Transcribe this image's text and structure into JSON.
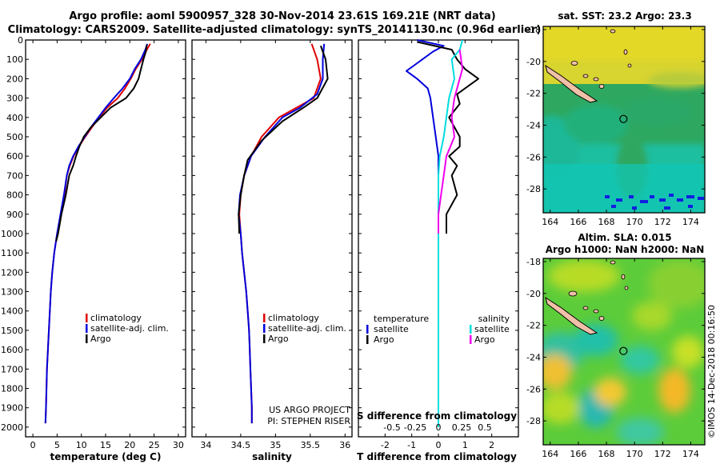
{
  "title": {
    "line1": "Argo profile: aoml 5900957_328 30-Nov-2014 23.61S 169.21E (NRT data)",
    "line2": "Climatology: CARS2009. Satellite-adjusted climatology: synTS_20141130.nc (0.96d earlier)"
  },
  "colors": {
    "climatology": "#e00000",
    "satellite": "#0000dd",
    "argo": "#000000",
    "sat_salinity": "#00dddd",
    "argo_salinity_diff": "#ee00ee"
  },
  "chart_data": [
    {
      "type": "line",
      "name": "temperature-profile",
      "xlabel": "temperature (deg C)",
      "xlim": [
        -1.5,
        31.5
      ],
      "ylim": [
        2050,
        0
      ],
      "xticks": [
        0,
        5,
        10,
        15,
        20,
        25,
        30
      ],
      "yticks": [
        0,
        100,
        200,
        300,
        400,
        500,
        600,
        700,
        800,
        900,
        1000,
        1100,
        1200,
        1300,
        1400,
        1500,
        1600,
        1700,
        1800,
        1900,
        2000
      ],
      "legend": [
        "climatology",
        "satellite-adj. clim.",
        "Argo"
      ],
      "series": [
        {
          "name": "climatology",
          "color_key": "climatology",
          "points": [
            [
              24.2,
              20
            ],
            [
              23.5,
              50
            ],
            [
              22.5,
              100
            ],
            [
              21.2,
              150
            ],
            [
              20.2,
              200
            ],
            [
              19,
              250
            ],
            [
              17.5,
              300
            ],
            [
              15.3,
              350
            ],
            [
              13.7,
              400
            ],
            [
              12.2,
              450
            ],
            [
              10.8,
              500
            ],
            [
              9.5,
              550
            ],
            [
              8.4,
              600
            ],
            [
              7.6,
              650
            ],
            [
              7.0,
              700
            ],
            [
              6.5,
              800
            ],
            [
              5.8,
              900
            ],
            [
              5.0,
              1000
            ],
            [
              4.4,
              1100
            ],
            [
              4.0,
              1200
            ],
            [
              3.7,
              1300
            ],
            [
              3.5,
              1400
            ],
            [
              3.3,
              1500
            ],
            [
              3.1,
              1600
            ],
            [
              2.9,
              1700
            ],
            [
              2.8,
              1800
            ],
            [
              2.7,
              1900
            ],
            [
              2.6,
              1980
            ]
          ]
        },
        {
          "name": "satellite-adj. clim.",
          "color_key": "satellite",
          "points": [
            [
              23.6,
              20
            ],
            [
              23.2,
              50
            ],
            [
              22.3,
              100
            ],
            [
              21.0,
              150
            ],
            [
              20.0,
              200
            ],
            [
              18.5,
              250
            ],
            [
              16.7,
              300
            ],
            [
              15.0,
              350
            ],
            [
              13.5,
              400
            ],
            [
              12.0,
              450
            ],
            [
              10.7,
              500
            ],
            [
              9.4,
              550
            ],
            [
              8.3,
              600
            ],
            [
              7.5,
              650
            ],
            [
              7.0,
              700
            ],
            [
              6.4,
              800
            ],
            [
              5.7,
              900
            ],
            [
              5.0,
              1000
            ],
            [
              4.4,
              1100
            ],
            [
              4.0,
              1200
            ],
            [
              3.7,
              1300
            ],
            [
              3.5,
              1400
            ],
            [
              3.3,
              1500
            ],
            [
              3.1,
              1600
            ],
            [
              2.9,
              1700
            ],
            [
              2.8,
              1800
            ],
            [
              2.7,
              1900
            ],
            [
              2.6,
              1980
            ]
          ]
        },
        {
          "name": "Argo",
          "color_key": "argo",
          "points": [
            [
              23.5,
              25
            ],
            [
              23.3,
              60
            ],
            [
              22.8,
              100
            ],
            [
              22.3,
              150
            ],
            [
              21.8,
              200
            ],
            [
              20.8,
              250
            ],
            [
              19.2,
              300
            ],
            [
              16.0,
              350
            ],
            [
              14.0,
              400
            ],
            [
              12.0,
              450
            ],
            [
              10.5,
              500
            ],
            [
              9.6,
              550
            ],
            [
              8.9,
              600
            ],
            [
              8.3,
              650
            ],
            [
              7.5,
              700
            ],
            [
              6.8,
              800
            ],
            [
              5.9,
              900
            ],
            [
              5.2,
              1000
            ],
            [
              4.8,
              1040
            ]
          ]
        }
      ]
    },
    {
      "type": "line",
      "name": "salinity-profile",
      "xlabel": "salinity",
      "xlim": [
        33.8,
        36.1
      ],
      "ylim": [
        2050,
        0
      ],
      "xticks": [
        34,
        34.5,
        35,
        35.5,
        36
      ],
      "legend": [
        "climatology",
        "satellite-adj. clim.",
        "Argo"
      ],
      "annotation": [
        "US ARGO PROJECT",
        "PI: STEPHEN RISER"
      ],
      "series": [
        {
          "name": "climatology",
          "color_key": "climatology",
          "points": [
            [
              35.52,
              20
            ],
            [
              35.6,
              100
            ],
            [
              35.65,
              200
            ],
            [
              35.55,
              300
            ],
            [
              35.3,
              350
            ],
            [
              35.05,
              400
            ],
            [
              34.8,
              500
            ],
            [
              34.65,
              600
            ],
            [
              34.55,
              700
            ],
            [
              34.5,
              800
            ],
            [
              34.48,
              900
            ],
            [
              34.5,
              1000
            ],
            [
              34.52,
              1100
            ],
            [
              34.55,
              1200
            ],
            [
              34.58,
              1300
            ],
            [
              34.6,
              1400
            ],
            [
              34.62,
              1500
            ],
            [
              34.63,
              1600
            ],
            [
              34.64,
              1700
            ],
            [
              34.65,
              1800
            ],
            [
              34.66,
              1900
            ],
            [
              34.66,
              1980
            ]
          ]
        },
        {
          "name": "satellite-adj. clim.",
          "color_key": "satellite",
          "points": [
            [
              35.7,
              20
            ],
            [
              35.68,
              100
            ],
            [
              35.68,
              200
            ],
            [
              35.6,
              280
            ],
            [
              35.35,
              350
            ],
            [
              35.1,
              400
            ],
            [
              34.85,
              500
            ],
            [
              34.65,
              600
            ],
            [
              34.55,
              700
            ],
            [
              34.49,
              800
            ],
            [
              34.47,
              900
            ],
            [
              34.5,
              1000
            ],
            [
              34.52,
              1100
            ],
            [
              34.55,
              1200
            ],
            [
              34.58,
              1300
            ],
            [
              34.6,
              1400
            ],
            [
              34.62,
              1500
            ],
            [
              34.63,
              1600
            ],
            [
              34.64,
              1700
            ],
            [
              34.65,
              1800
            ],
            [
              34.66,
              1900
            ],
            [
              34.66,
              1980
            ]
          ]
        },
        {
          "name": "Argo",
          "color_key": "argo",
          "points": [
            [
              35.65,
              30
            ],
            [
              35.72,
              100
            ],
            [
              35.75,
              200
            ],
            [
              35.6,
              300
            ],
            [
              35.4,
              350
            ],
            [
              35.1,
              420
            ],
            [
              34.8,
              520
            ],
            [
              34.6,
              620
            ],
            [
              34.55,
              700
            ],
            [
              34.5,
              800
            ],
            [
              34.47,
              900
            ],
            [
              34.48,
              1000
            ]
          ]
        }
      ]
    },
    {
      "type": "line",
      "name": "difference-profile",
      "xlabel": "T difference from climatology",
      "xlabel_top": "S difference from climatology",
      "xlim": [
        -3,
        3
      ],
      "ylim": [
        2050,
        0
      ],
      "xticks": [
        -2,
        -1,
        0,
        1,
        2
      ],
      "xticks_top": [
        -0.5,
        -0.25,
        0,
        0.25,
        0.5
      ],
      "xtick_labels_top": [
        "-0.5",
        "-0.25",
        "0",
        "0.25",
        "0.5"
      ],
      "legend_left": {
        "title": "temperature",
        "items": [
          "satellite",
          "Argo"
        ]
      },
      "legend_right": {
        "title": "salinity",
        "items": [
          "satellite",
          "Argo"
        ]
      },
      "series": [
        {
          "name": "temperature satellite",
          "color_key": "satellite",
          "points": [
            [
              -0.8,
              0
            ],
            [
              0.2,
              30
            ],
            [
              -0.2,
              60
            ],
            [
              -0.6,
              100
            ],
            [
              -0.9,
              130
            ],
            [
              -1.2,
              160
            ],
            [
              -0.8,
              200
            ],
            [
              -0.4,
              250
            ],
            [
              -0.3,
              300
            ],
            [
              -0.2,
              400
            ],
            [
              -0.1,
              500
            ],
            [
              0.0,
              600
            ],
            [
              0.0,
              700
            ],
            [
              0.0,
              800
            ],
            [
              0.0,
              900
            ],
            [
              0.0,
              1000
            ]
          ]
        },
        {
          "name": "temperature Argo",
          "color_key": "argo",
          "points": [
            [
              -0.8,
              10
            ],
            [
              0.5,
              50
            ],
            [
              0.7,
              100
            ],
            [
              1.0,
              150
            ],
            [
              1.5,
              200
            ],
            [
              0.7,
              280
            ],
            [
              0.8,
              330
            ],
            [
              0.4,
              400
            ],
            [
              0.6,
              450
            ],
            [
              0.8,
              500
            ],
            [
              0.8,
              550
            ],
            [
              0.4,
              600
            ],
            [
              0.7,
              650
            ],
            [
              0.5,
              700
            ],
            [
              0.7,
              800
            ],
            [
              0.3,
              900
            ],
            [
              0.3,
              1000
            ]
          ]
        },
        {
          "name": "salinity satellite",
          "color_key": "sat_salinity",
          "points": [
            [
              0.9,
              0
            ],
            [
              0.8,
              50
            ],
            [
              0.5,
              100
            ],
            [
              0.6,
              200
            ],
            [
              0.4,
              300
            ],
            [
              0.3,
              400
            ],
            [
              0.2,
              500
            ],
            [
              0.05,
              600
            ],
            [
              0.0,
              700
            ],
            [
              0.0,
              800
            ],
            [
              0.0,
              1000
            ],
            [
              0.0,
              1200
            ],
            [
              0.0,
              1400
            ],
            [
              0.0,
              1600
            ],
            [
              0.0,
              1800
            ],
            [
              0.0,
              2000
            ]
          ]
        },
        {
          "name": "salinity Argo",
          "color_key": "argo_salinity_diff",
          "points": [
            [
              0.8,
              50
            ],
            [
              0.9,
              150
            ],
            [
              0.6,
              300
            ],
            [
              0.5,
              400
            ],
            [
              0.6,
              500
            ],
            [
              0.3,
              600
            ],
            [
              0.2,
              700
            ],
            [
              0.1,
              800
            ],
            [
              0.0,
              900
            ],
            [
              0.0,
              1000
            ]
          ]
        }
      ]
    },
    {
      "type": "heatmap",
      "name": "sst-map",
      "title": "sat. SST: 23.2 Argo: 23.3",
      "xlim": [
        163.5,
        175
      ],
      "ylim": [
        -29.5,
        -17.8
      ],
      "xticks": [
        164,
        166,
        168,
        170,
        172,
        174
      ],
      "yticks": [
        -18,
        -20,
        -22,
        -24,
        -26,
        -28
      ],
      "marker": [
        169.21,
        -23.61
      ]
    },
    {
      "type": "heatmap",
      "name": "sla-map",
      "title_line1": "Altim. SLA: 0.015",
      "title_line2": "Argo h1000: NaN h2000: NaN",
      "xlim": [
        163.5,
        175
      ],
      "ylim": [
        -29.5,
        -17.8
      ],
      "xticks": [
        164,
        166,
        168,
        170,
        172,
        174
      ],
      "yticks": [
        -18,
        -20,
        -22,
        -24,
        -26,
        -28
      ],
      "marker": [
        169.21,
        -23.61
      ]
    }
  ],
  "footer": "©IMOS 14-Dec-2018 00:16:50"
}
